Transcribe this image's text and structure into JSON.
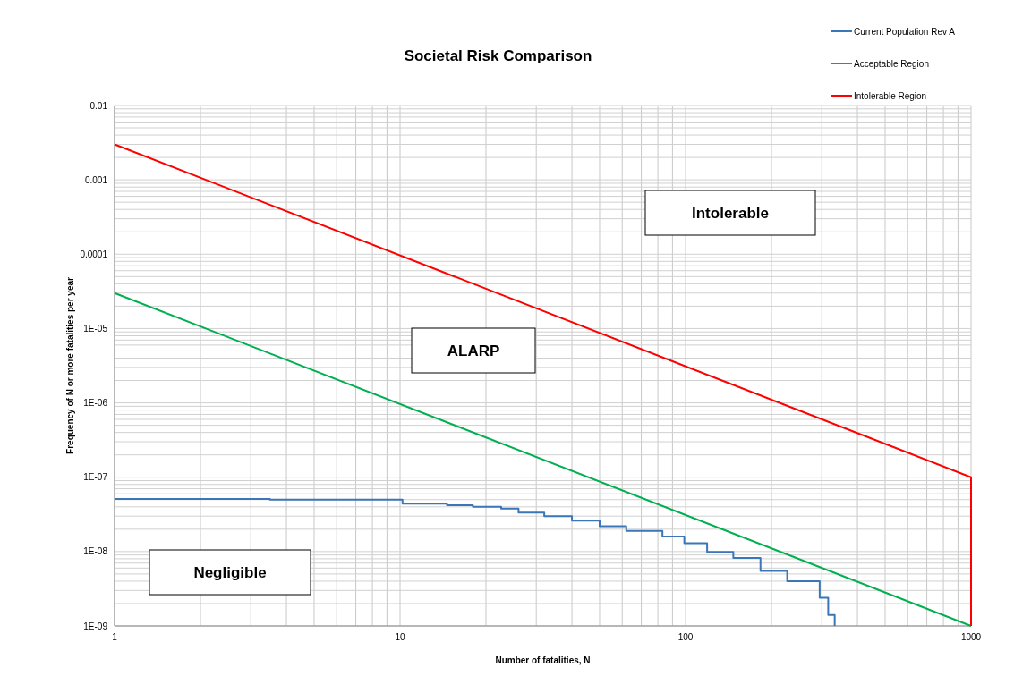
{
  "chart_data": {
    "type": "line",
    "title": "Societal Risk Comparison",
    "xlabel": "Number of fatalities, N",
    "ylabel": "Frequency of N or more fatalities per year",
    "log": "xy",
    "grid": true,
    "legend": "top right",
    "xlim": [
      1,
      1000
    ],
    "ylim": [
      1e-09,
      0.01
    ],
    "xticks": [
      1,
      10,
      100,
      1000
    ],
    "yticks": [
      {
        "value": 1e-09,
        "label": "1E-09"
      },
      {
        "value": 1e-08,
        "label": "1E-08"
      },
      {
        "value": 1e-07,
        "label": "1E-07"
      },
      {
        "value": 1e-06,
        "label": "1E-06"
      },
      {
        "value": 1e-05,
        "label": "1E-05"
      },
      {
        "value": 0.0001,
        "label": "0.0001"
      },
      {
        "value": 0.001,
        "label": "0.001"
      },
      {
        "value": 0.01,
        "label": "0.01"
      }
    ],
    "series": [
      {
        "name": "Current Population Rev A",
        "color": "#3a76b8",
        "type": "step",
        "x": [
          1,
          3.5,
          10.2,
          14.6,
          18,
          22.6,
          26,
          32,
          40,
          50,
          62,
          83,
          99,
          119,
          147,
          183,
          227,
          295,
          316,
          333
        ],
        "values": [
          5.1e-08,
          5e-08,
          4.4e-08,
          4.2e-08,
          4e-08,
          3.8e-08,
          3.35e-08,
          3e-08,
          2.6e-08,
          2.2e-08,
          1.9e-08,
          1.6e-08,
          1.3e-08,
          9.9e-09,
          8.2e-09,
          5.5e-09,
          4e-09,
          2.4e-09,
          1.4e-09,
          1e-09
        ]
      },
      {
        "name": "Acceptable Region",
        "color": "#00b050",
        "x": [
          1,
          1000
        ],
        "values": [
          3e-05,
          1e-09
        ]
      },
      {
        "name": "Intolerable Region",
        "color": "#ff0000",
        "x": [
          1,
          1000,
          1000
        ],
        "values": [
          0.003,
          1e-07,
          1e-09
        ]
      }
    ],
    "annotations": [
      "Intolerable",
      "ALARP",
      "Negligible"
    ]
  }
}
